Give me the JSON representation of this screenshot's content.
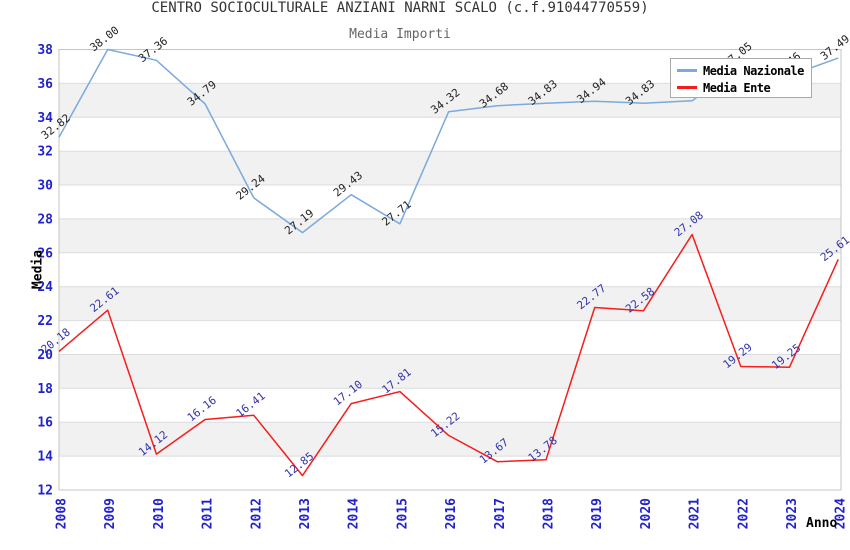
{
  "title": "CENTRO SOCIOCULTURALE ANZIANI NARNI SCALO (c.f.91044770559)",
  "subtitle": "Media Importi",
  "legend": {
    "items": [
      {
        "label": "Media Nazionale",
        "color": "#7aa9dc"
      },
      {
        "label": "Media Ente",
        "color": "#f51d1d"
      }
    ]
  },
  "axes": {
    "y_title": "Media",
    "x_title": "Anno",
    "y_ticks": [
      38,
      36,
      34,
      32,
      30,
      28,
      26,
      24,
      22,
      20,
      18,
      16,
      14,
      12
    ],
    "tick_color": "#2222cc"
  },
  "chart_data": {
    "type": "line",
    "x": [
      "2008",
      "2009",
      "2010",
      "2011",
      "2012",
      "2013",
      "2014",
      "2015",
      "2016",
      "2017",
      "2018",
      "2019",
      "2020",
      "2021",
      "2022",
      "2023",
      "2024"
    ],
    "ylim": [
      12,
      38
    ],
    "grid": "horizontal-bands",
    "legend_position": "top-right",
    "title": "CENTRO SOCIOCULTURALE ANZIANI NARNI SCALO (c.f.91044770559)",
    "subtitle": "Media Importi",
    "xlabel": "Anno",
    "ylabel": "Media",
    "series": [
      {
        "name": "Media Nazionale",
        "color": "#7aa9dc",
        "label_color": "#222222",
        "values": [
          32.82,
          38.0,
          37.36,
          34.79,
          29.24,
          27.19,
          29.43,
          27.71,
          34.32,
          34.68,
          34.83,
          34.94,
          34.83,
          34.97,
          37.05,
          36.46,
          37.49
        ],
        "point_labels": [
          "32.82",
          "38.00",
          "37.36",
          "34.79",
          "29.24",
          "27.19",
          "29.43",
          "27.71",
          "34.32",
          "34.68",
          "34.83",
          "34.94",
          "34.83",
          "",
          "37.05",
          "36.46",
          "37.49"
        ]
      },
      {
        "name": "Media Ente",
        "color": "#f51d1d",
        "label_color": "#3333aa",
        "values": [
          20.18,
          22.61,
          14.12,
          16.16,
          16.41,
          12.85,
          17.1,
          17.81,
          15.22,
          13.67,
          13.78,
          22.77,
          22.58,
          27.08,
          19.29,
          19.25,
          25.61
        ],
        "point_labels": [
          "20.18",
          "22.61",
          "14.12",
          "16.16",
          "16.41",
          "12.85",
          "17.10",
          "17.81",
          "15.22",
          "13.67",
          "13.78",
          "22.77",
          "22.58",
          "27.08",
          "19.29",
          "19.25",
          "25.61"
        ]
      }
    ]
  }
}
